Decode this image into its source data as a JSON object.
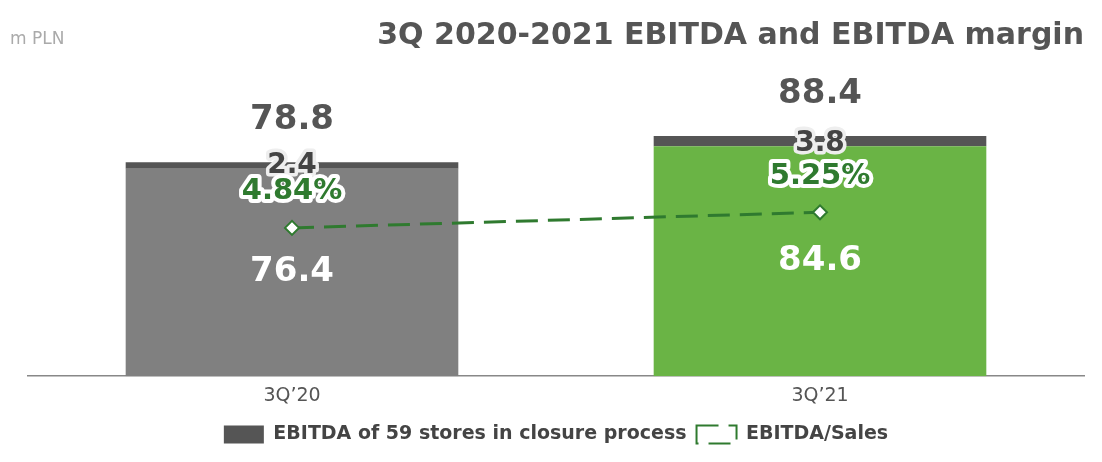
{
  "chart_data": {
    "type": "bar",
    "title": "3Q 2020-2021 EBITDA and EBITDA margin",
    "annotations": [
      "m PLN"
    ],
    "stacked": true,
    "categories": [
      "3Q’20",
      "3Q’21"
    ],
    "series": [
      {
        "colors": [
          "#808080",
          "#6ab445"
        ],
        "values": [
          76.4,
          84.6
        ]
      },
      {
        "name": "EBITDA of 59 stores in closure process",
        "color": "#555555",
        "values": [
          2.4,
          3.8
        ]
      },
      {
        "name": "EBITDA/Sales",
        "type": "line",
        "axis": "y2",
        "color": "#2f7a2f",
        "values": [
          4.84,
          5.25
        ],
        "value_labels": [
          "4.84%",
          "5.25%"
        ]
      }
    ],
    "totals": [
      "78.8",
      "88.4"
    ],
    "data_labels": true,
    "marker": "diamond",
    "line_style": "dashed",
    "tick_labels": "x",
    "grid": false,
    "legend": "bottom"
  }
}
